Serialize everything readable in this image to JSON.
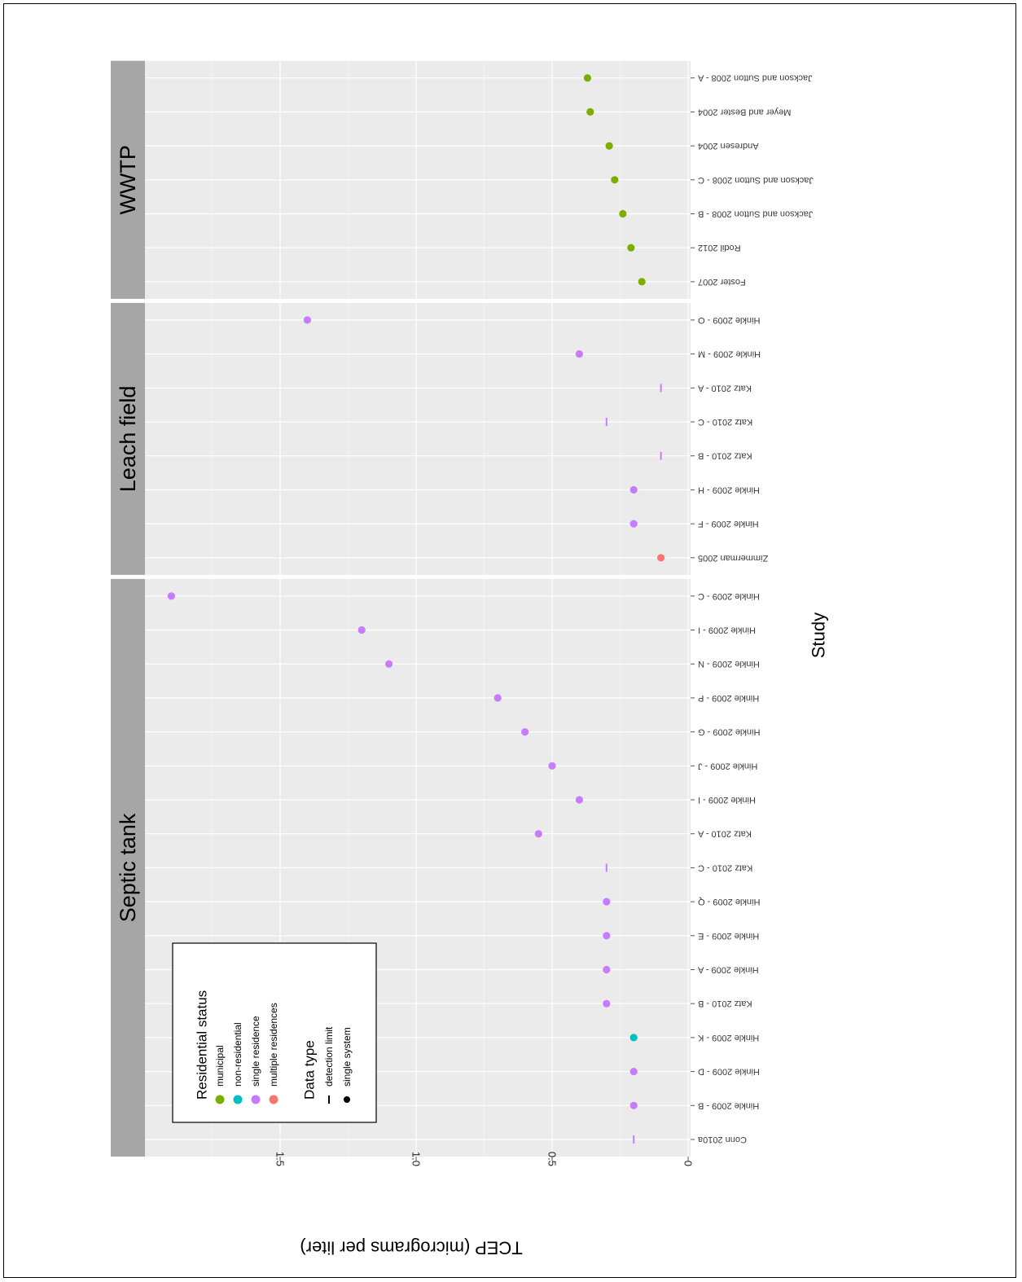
{
  "chart_data": {
    "type": "scatter",
    "orientation": "rotated 180 degrees",
    "xlabel": "Study",
    "ylabel": "TCEP (micrograms per liter)",
    "ylim": [
      0,
      2.0
    ],
    "yticks": [
      0,
      0.5,
      1.0,
      1.5
    ],
    "ytick_labels": [
      "0",
      "0.5",
      "1.0",
      "1.5"
    ],
    "grid": true,
    "legend_placement": "bottom-left",
    "colors": {
      "municipal": "#7cae00",
      "non-residential": "#00bfc4",
      "single residence": "#c77cff",
      "multiple residences": "#f8766d",
      "strip": "#a6a6a6",
      "panel": "#ebebeb"
    },
    "legend": {
      "residential_title": "Residential status",
      "residential_items": [
        {
          "label": "municipal",
          "color": "#7cae00"
        },
        {
          "label": "non-residential",
          "color": "#00bfc4"
        },
        {
          "label": "single residence",
          "color": "#c77cff"
        },
        {
          "label": "multiple residences",
          "color": "#f8766d"
        }
      ],
      "datatype_title": "Data type",
      "datatype_items": [
        {
          "label": "detection limit",
          "shape": "dash"
        },
        {
          "label": "single system",
          "shape": "dot"
        }
      ]
    },
    "panels": [
      {
        "title": "Septic tank",
        "points": [
          {
            "study": "Conn 2010a",
            "value": 0.2,
            "status": "single residence",
            "type": "detection limit"
          },
          {
            "study": "Hinkle 2009 - B",
            "value": 0.2,
            "status": "single residence",
            "type": "single system"
          },
          {
            "study": "Hinkle 2009 - D",
            "value": 0.2,
            "status": "single residence",
            "type": "single system"
          },
          {
            "study": "Hinkle 2009 - K",
            "value": 0.2,
            "status": "non-residential",
            "type": "single system"
          },
          {
            "study": "Katz 2010 - B",
            "value": 0.3,
            "status": "single residence",
            "type": "single system"
          },
          {
            "study": "Hinkle 2009 - A",
            "value": 0.3,
            "status": "single residence",
            "type": "single system"
          },
          {
            "study": "Hinkle 2009 - E",
            "value": 0.3,
            "status": "single residence",
            "type": "single system"
          },
          {
            "study": "Hinkle 2009 - Q",
            "value": 0.3,
            "status": "single residence",
            "type": "single system"
          },
          {
            "study": "Katz 2010 - C",
            "value": 0.3,
            "status": "single residence",
            "type": "detection limit"
          },
          {
            "study": "Katz 2010 - A",
            "value": 0.55,
            "status": "single residence",
            "type": "single system"
          },
          {
            "study": "Hinkle 2009 - I",
            "value": 0.4,
            "status": "single residence",
            "type": "single system"
          },
          {
            "study": "Hinkle 2009 - J",
            "value": 0.5,
            "status": "single residence",
            "type": "single system"
          },
          {
            "study": "Hinkle 2009 - G",
            "value": 0.6,
            "status": "single residence",
            "type": "single system"
          },
          {
            "study": "Hinkle 2009 - P",
            "value": 0.7,
            "status": "single residence",
            "type": "single system"
          },
          {
            "study": "Hinkle 2009 - N",
            "value": 1.1,
            "status": "single residence",
            "type": "single system"
          },
          {
            "study": "Hinkle 2009 - I",
            "value": 1.2,
            "status": "single residence",
            "type": "single system"
          },
          {
            "study": "Hinkle 2009 - C",
            "value": 1.9,
            "status": "single residence",
            "type": "single system"
          }
        ]
      },
      {
        "title": "Leach field",
        "points": [
          {
            "study": "Zimmerman 2005",
            "value": 0.1,
            "status": "multiple residences",
            "type": "single system"
          },
          {
            "study": "Hinkle 2009 - F",
            "value": 0.2,
            "status": "single residence",
            "type": "single system"
          },
          {
            "study": "Hinkle 2009 - H",
            "value": 0.2,
            "status": "single residence",
            "type": "single system"
          },
          {
            "study": "Katz 2010 - B",
            "value": 0.1,
            "status": "single residence",
            "type": "detection limit"
          },
          {
            "study": "Katz 2010 - C",
            "value": 0.3,
            "status": "single residence",
            "type": "detection limit"
          },
          {
            "study": "Katz 2010 - A",
            "value": 0.1,
            "status": "single residence",
            "type": "detection limit"
          },
          {
            "study": "Hinkle 2009 - M",
            "value": 0.4,
            "status": "single residence",
            "type": "single system"
          },
          {
            "study": "Hinkle 2009 - O",
            "value": 1.4,
            "status": "single residence",
            "type": "single system"
          }
        ]
      },
      {
        "title": "WWTP",
        "points": [
          {
            "study": "Foster 2007",
            "value": 0.17,
            "status": "municipal",
            "type": "single system"
          },
          {
            "study": "Rodil 2012",
            "value": 0.21,
            "status": "municipal",
            "type": "single system"
          },
          {
            "study": "Jackson and Sutton 2008 - B",
            "value": 0.24,
            "status": "municipal",
            "type": "single system"
          },
          {
            "study": "Jackson and Sutton 2008 - C",
            "value": 0.27,
            "status": "municipal",
            "type": "single system"
          },
          {
            "study": "Andresen 2004",
            "value": 0.29,
            "status": "municipal",
            "type": "single system"
          },
          {
            "study": "Meyer and Bester 2004",
            "value": 0.36,
            "status": "municipal",
            "type": "single system"
          },
          {
            "study": "Jackson and Sutton 2008 - A",
            "value": 0.37,
            "status": "municipal",
            "type": "single system"
          }
        ]
      }
    ]
  }
}
